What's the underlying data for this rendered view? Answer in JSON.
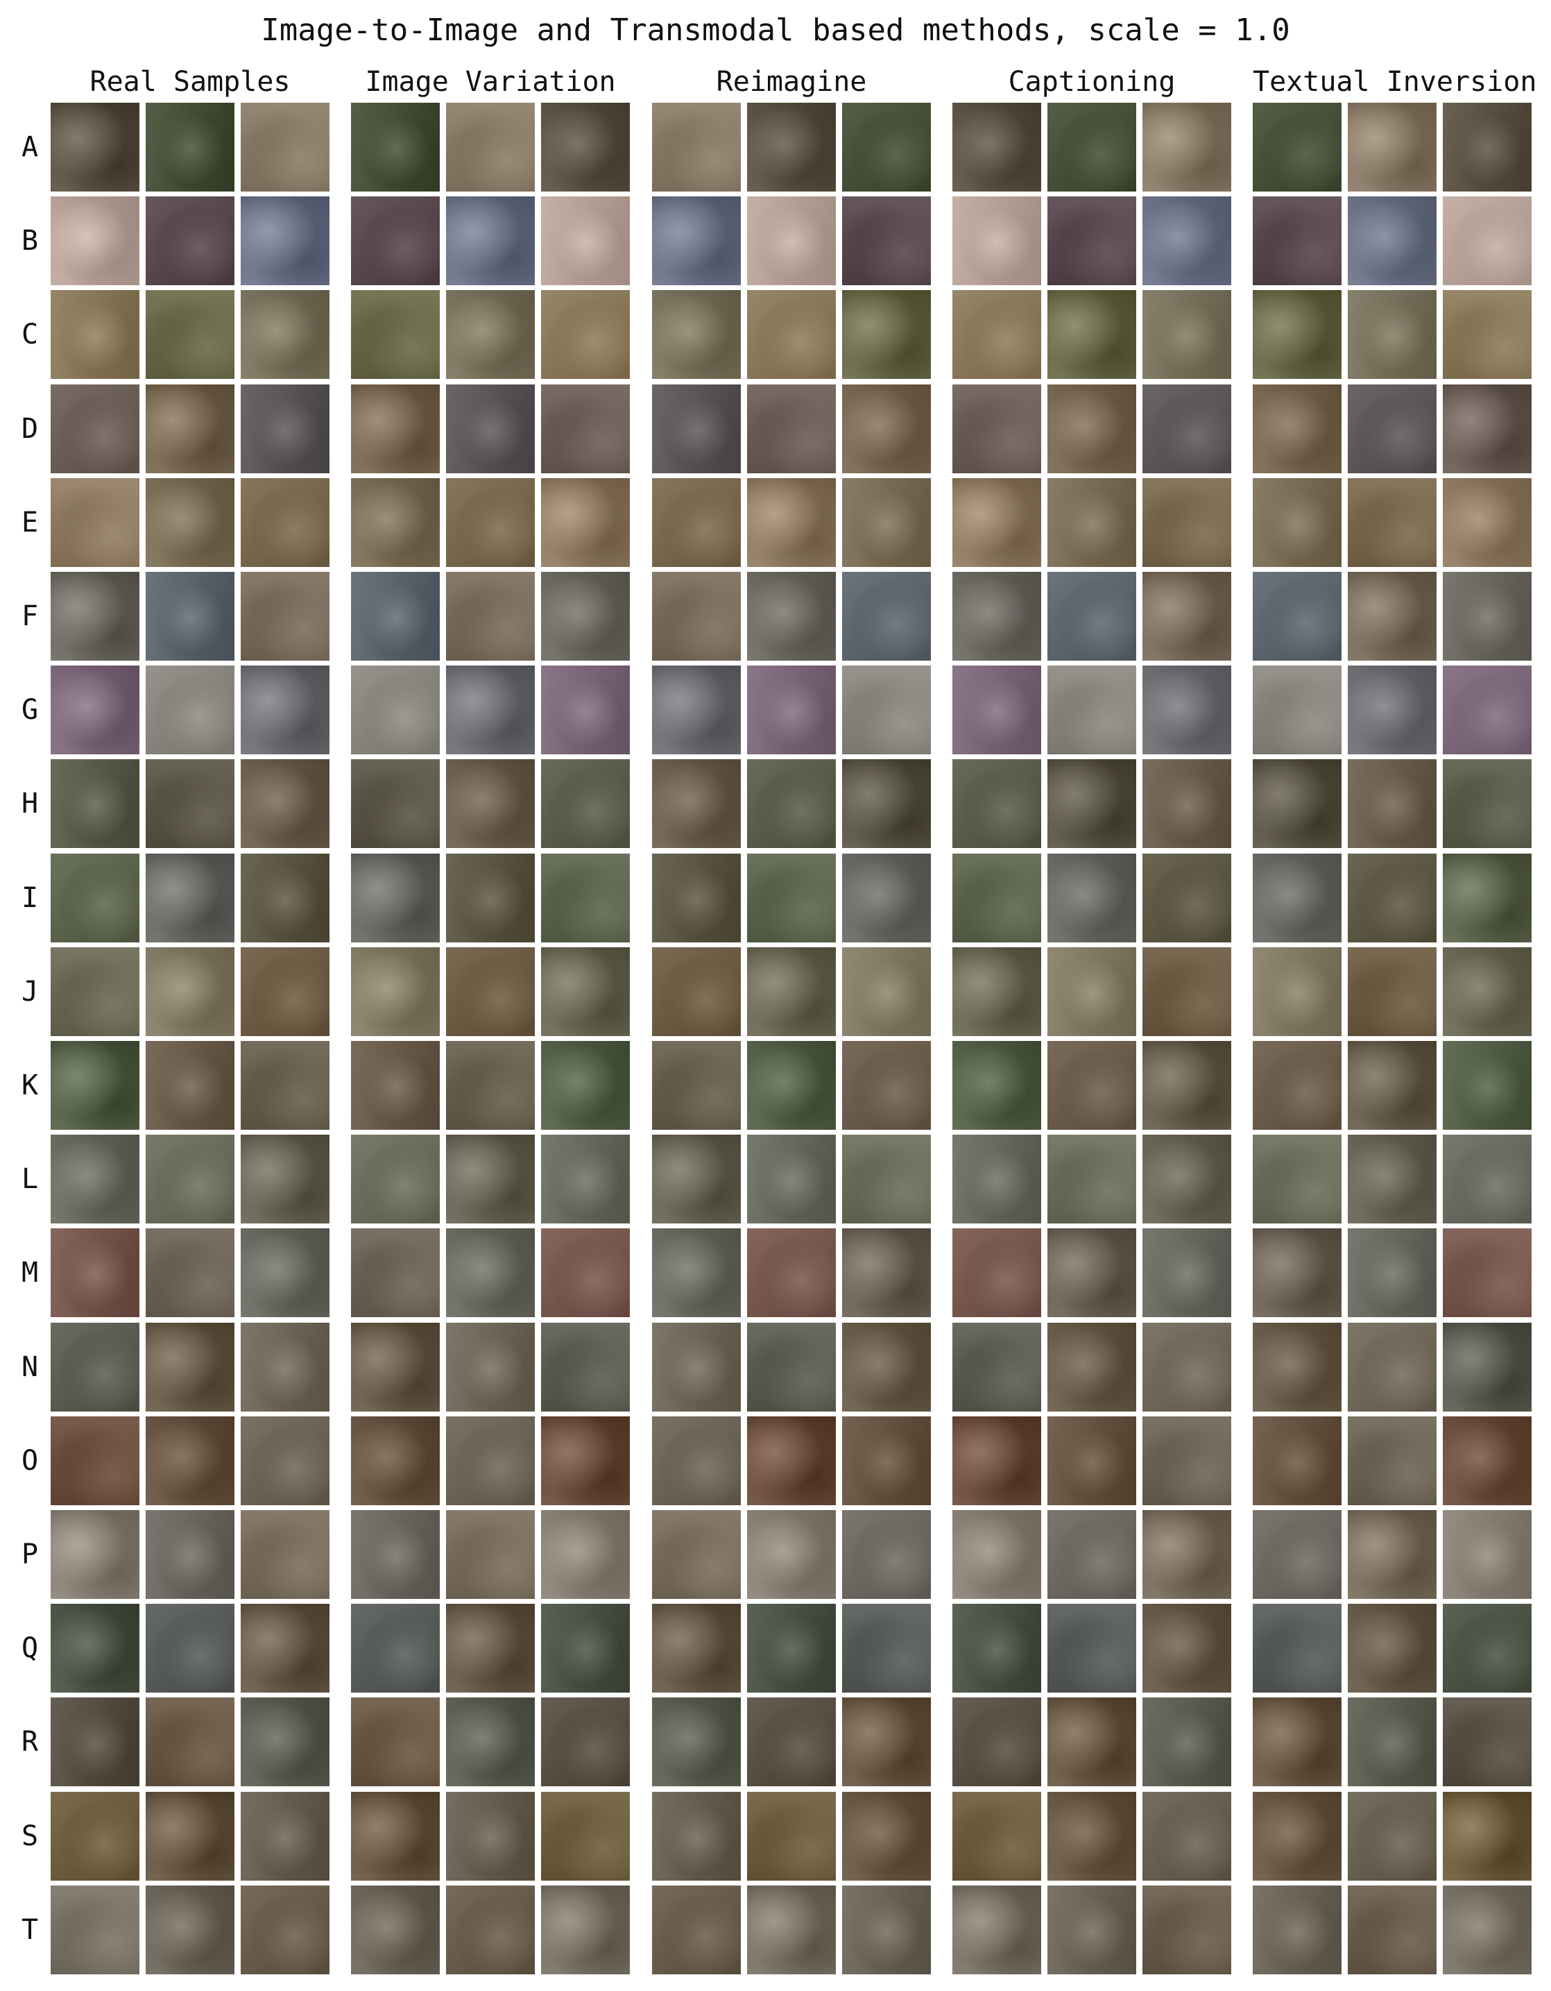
{
  "title": "Image-to-Image and Transmodal based methods, scale = 1.0",
  "columns": [
    {
      "label": "Real Samples",
      "key": "real"
    },
    {
      "label": "Image Variation",
      "key": "variation"
    },
    {
      "label": "Reimagine",
      "key": "reimagine"
    },
    {
      "label": "Captioning",
      "key": "captioning"
    },
    {
      "label": "Textual Inversion",
      "key": "textual-inversion"
    }
  ],
  "samples_per_column": 3,
  "rows": [
    {
      "label": "A",
      "tone": [
        "#5e5546",
        "#49523a",
        "#8a7b68"
      ]
    },
    {
      "label": "B",
      "tone": [
        "#b9a49a",
        "#5b4a52",
        "#6e7488"
      ]
    },
    {
      "label": "C",
      "tone": [
        "#8b7a5c",
        "#6b6a4a",
        "#7b7560"
      ]
    },
    {
      "label": "D",
      "tone": [
        "#6c6058",
        "#7a6a54",
        "#5e5a5c"
      ]
    },
    {
      "label": "E",
      "tone": [
        "#8f7c62",
        "#7d7058",
        "#7a6a50"
      ]
    },
    {
      "label": "F",
      "tone": [
        "#6e6a64",
        "#5f6870",
        "#7b6d5e"
      ]
    },
    {
      "label": "G",
      "tone": [
        "#7e6a7c",
        "#8a8680",
        "#6f7074"
      ]
    },
    {
      "label": "H",
      "tone": [
        "#5c5f4c",
        "#5d5848",
        "#6d6152"
      ]
    },
    {
      "label": "I",
      "tone": [
        "#5f6650",
        "#6a6a66",
        "#5e5a46"
      ]
    },
    {
      "label": "J",
      "tone": [
        "#6d6a58",
        "#867d68",
        "#6e5e46"
      ]
    },
    {
      "label": "K",
      "tone": [
        "#56634a",
        "#6e5e4e",
        "#6a6050"
      ]
    },
    {
      "label": "L",
      "tone": [
        "#6a6e62",
        "#6e6e5c",
        "#6a6658"
      ]
    },
    {
      "label": "M",
      "tone": [
        "#7a5a50",
        "#6e6458",
        "#6c6c64"
      ]
    },
    {
      "label": "N",
      "tone": [
        "#5e5e54",
        "#6c5e4c",
        "#726a5a"
      ]
    },
    {
      "label": "O",
      "tone": [
        "#6e5040",
        "#6a5644",
        "#6e6656"
      ]
    },
    {
      "label": "P",
      "tone": [
        "#8a8276",
        "#6e6a64",
        "#7a6e5e"
      ]
    },
    {
      "label": "Q",
      "tone": [
        "#4e5648",
        "#5a5e5a",
        "#6a5c4c"
      ]
    },
    {
      "label": "R",
      "tone": [
        "#5a5246",
        "#6c5a48",
        "#5e6254"
      ]
    },
    {
      "label": "S",
      "tone": [
        "#6e6040",
        "#6a5a46",
        "#6a6252"
      ]
    },
    {
      "label": "T",
      "tone": [
        "#7a7468",
        "#6e685c",
        "#6a5e4e"
      ]
    }
  ]
}
